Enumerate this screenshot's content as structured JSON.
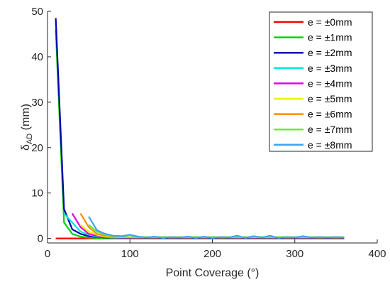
{
  "chart_data": {
    "type": "line",
    "xlabel": "Point Coverage (°)",
    "ylabel_main": "δ",
    "ylabel_sub": "AD",
    "ylabel_unit": " (mm)",
    "xlim": [
      0,
      400
    ],
    "ylim": [
      -1,
      50
    ],
    "xticks": [
      0,
      100,
      200,
      300,
      400
    ],
    "yticks": [
      0,
      10,
      20,
      30,
      40,
      50
    ],
    "grid": false,
    "legend_position": "top-right",
    "series": [
      {
        "name": "e = ±0mm",
        "color": "#ff0000",
        "x": [
          10,
          20,
          30,
          40,
          50,
          60,
          70,
          80,
          100,
          150,
          200,
          250,
          300,
          360
        ],
        "y": [
          0,
          0,
          0,
          0,
          0,
          0,
          0,
          0,
          0,
          0,
          0,
          0,
          0,
          0
        ]
      },
      {
        "name": "e = ±1mm",
        "color": "#00d400",
        "x": [
          10,
          20,
          30,
          40,
          50,
          60,
          70,
          80,
          100,
          150,
          200,
          250,
          300,
          360
        ],
        "y": [
          46,
          3.5,
          1.0,
          0.4,
          0.2,
          0.1,
          0.1,
          0.1,
          0.1,
          0.1,
          0.1,
          0.1,
          0.1,
          0.1
        ]
      },
      {
        "name": "e = ±2mm",
        "color": "#0000b4",
        "x": [
          10,
          20,
          30,
          40,
          50,
          60,
          70,
          80,
          100,
          150,
          200,
          250,
          300,
          360
        ],
        "y": [
          48.5,
          6.5,
          2.0,
          1.0,
          0.5,
          0.3,
          0.2,
          0.2,
          0.1,
          0.1,
          0.1,
          0.1,
          0.1,
          0.1
        ]
      },
      {
        "name": "e = ±3mm",
        "color": "#00e6e6",
        "x": [
          20,
          30,
          40,
          50,
          60,
          70,
          80,
          100,
          150,
          200,
          250,
          300,
          360
        ],
        "y": [
          5.5,
          3.5,
          1.5,
          0.8,
          0.4,
          0.3,
          0.2,
          0.2,
          0.2,
          0.2,
          0.2,
          0.2,
          0.2
        ]
      },
      {
        "name": "e = ±4mm",
        "color": "#e600e6",
        "x": [
          30,
          40,
          50,
          60,
          70,
          80,
          100,
          150,
          200,
          250,
          300,
          360
        ],
        "y": [
          5.5,
          2.5,
          1.0,
          0.6,
          0.3,
          0.2,
          0.2,
          0.2,
          0.2,
          0.2,
          0.2,
          0.2
        ]
      },
      {
        "name": "e = ±5mm",
        "color": "#f0f000",
        "x": [
          40,
          50,
          60,
          70,
          80,
          100,
          150,
          200,
          250,
          300,
          360
        ],
        "y": [
          3.0,
          1.5,
          0.8,
          0.4,
          0.3,
          0.2,
          0.2,
          0.2,
          0.2,
          0.2,
          0.2
        ]
      },
      {
        "name": "e = ±6mm",
        "color": "#ff8c00",
        "x": [
          40,
          50,
          60,
          70,
          80,
          100,
          150,
          200,
          250,
          300,
          360
        ],
        "y": [
          5.5,
          2.5,
          1.0,
          0.6,
          0.4,
          0.3,
          0.3,
          0.3,
          0.3,
          0.3,
          0.3
        ]
      },
      {
        "name": "e = ±7mm",
        "color": "#66ee33",
        "x": [
          50,
          60,
          70,
          80,
          100,
          150,
          200,
          250,
          300,
          360
        ],
        "y": [
          3.0,
          1.5,
          0.8,
          0.5,
          0.3,
          0.3,
          0.3,
          0.3,
          0.3,
          0.3
        ]
      },
      {
        "name": "e = ±8mm",
        "color": "#3aa6f0",
        "x": [
          50,
          60,
          70,
          80,
          90,
          100,
          110,
          120,
          130,
          140,
          150,
          160,
          170,
          180,
          190,
          200,
          210,
          220,
          230,
          240,
          250,
          260,
          270,
          280,
          290,
          300,
          310,
          320,
          330,
          340,
          350,
          360
        ],
        "y": [
          4.8,
          1.8,
          1.0,
          0.6,
          0.5,
          0.8,
          0.4,
          0.2,
          0.4,
          0.1,
          0.3,
          0.2,
          0.4,
          0.1,
          0.4,
          0.1,
          0.3,
          0.2,
          0.6,
          0.1,
          0.5,
          0.2,
          0.6,
          0.1,
          0.3,
          0.2,
          0.5,
          0.2,
          0.3,
          0.2,
          0.3,
          0.2
        ]
      }
    ]
  }
}
